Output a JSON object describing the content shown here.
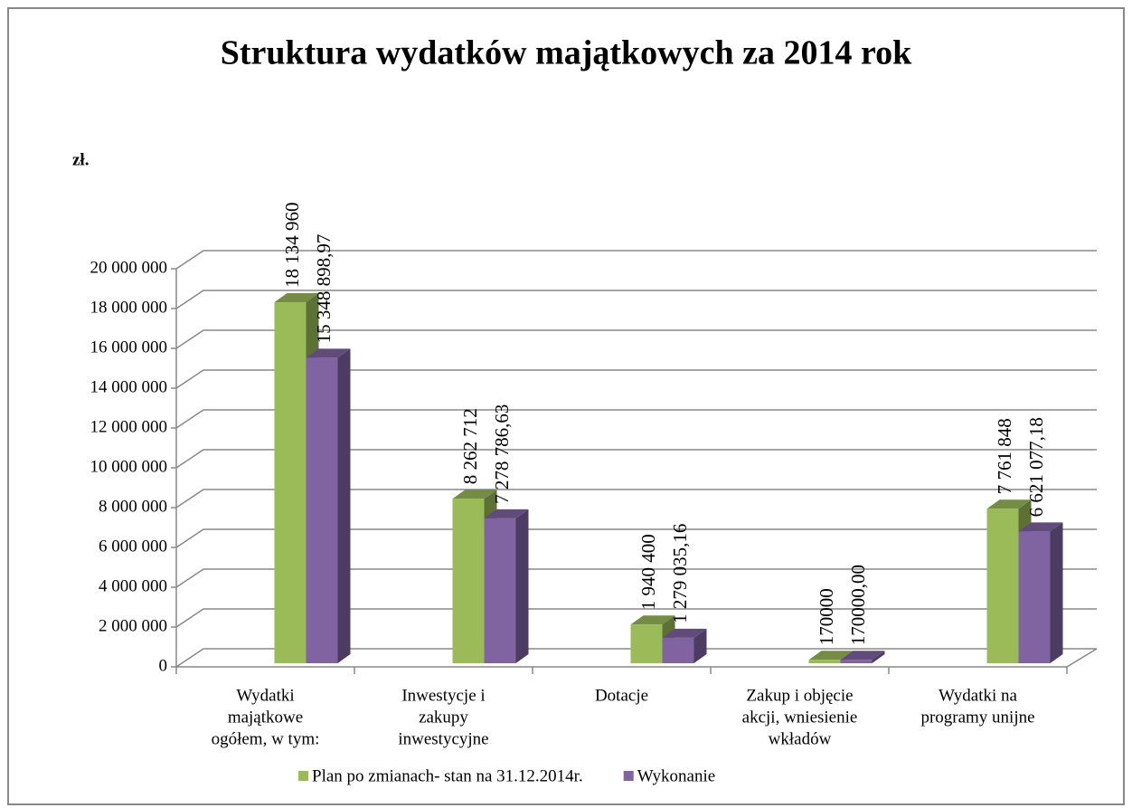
{
  "chart_data": {
    "type": "bar3d",
    "title": "Struktura wydatków majątkowych za 2014 rok",
    "y_label": "zł.",
    "categories": [
      [
        "Wydatki",
        "majątkowe",
        "ogółem, w tym:"
      ],
      [
        "Inwestycje i",
        "zakupy",
        "inwestycyjne"
      ],
      [
        "Dotacje"
      ],
      [
        "Zakup i objęcie",
        "akcji, wniesienie",
        "wkładów"
      ],
      [
        "Wydatki na",
        "programy unijne"
      ]
    ],
    "series": [
      {
        "name": "Plan po zmianach- stan na 31.12.2014r.",
        "color": "#9bbb59",
        "values": [
          18134960,
          8262712,
          1940400,
          170000,
          7761848
        ],
        "value_labels": [
          "18 134 960",
          "8 262 712",
          "1 940 400",
          "170000",
          "7 761 848"
        ]
      },
      {
        "name": "Wykonanie",
        "color": "#8064a2",
        "values": [
          15348898.97,
          7278786.63,
          1279035.16,
          170000.0,
          6621077.18
        ],
        "value_labels": [
          "15 348 898,97",
          "7 278 786,63",
          "1 279 035,16",
          "170000,00",
          "6 621 077,18"
        ]
      }
    ],
    "ylim": [
      0,
      20000000
    ],
    "yticks": [
      0,
      {
        "value": 2000000,
        "label": "2 000 000"
      },
      {
        "value": 4000000,
        "label": "4 000 000"
      },
      {
        "value": 6000000,
        "label": "6 000 000"
      },
      {
        "value": 8000000,
        "label": "8 000 000"
      },
      {
        "value": 10000000,
        "label": "10 000 000"
      },
      {
        "value": 12000000,
        "label": "12 000 000"
      },
      {
        "value": 14000000,
        "label": "14 000 000"
      },
      {
        "value": 16000000,
        "label": "16 000 000"
      },
      {
        "value": 18000000,
        "label": "18 000 000"
      },
      {
        "value": 20000000,
        "label": "20 000 000"
      }
    ],
    "grid": true,
    "legend": "bottom"
  }
}
